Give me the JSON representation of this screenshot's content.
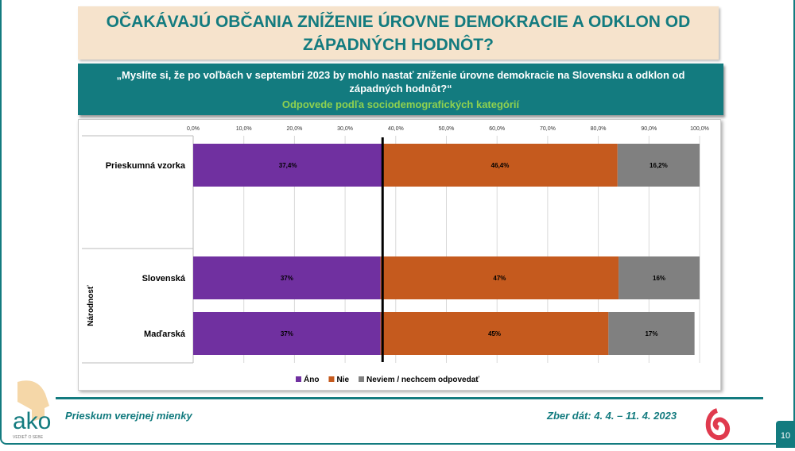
{
  "title": "OČAKÁVAJÚ OBČANIA ZNÍŽENIE ÚROVNE DEMOKRACIE A ODKLON OD ZÁPADNÝCH HODNÔT?",
  "question": "„Myslíte si, že po voľbách v septembri 2023 by mohlo nastať zníženie úrovne demokracie na Slovensku a odklon od západných hodnôt?“",
  "subtitle": "Odpovede podľa sociodemografických kategórií",
  "footer": {
    "left": "Prieskum verejnej mienky",
    "right": "Zber dát: 4. 4. – 11. 4. 2023",
    "page": "10",
    "logo_text": "ako",
    "logo_tagline": "VEDIEŤ O SEBE"
  },
  "chart_data": {
    "type": "bar",
    "orientation": "horizontal",
    "stacked": true,
    "xlim": [
      0,
      100
    ],
    "ticks": [
      "0,0%",
      "10,0%",
      "20,0%",
      "30,0%",
      "40,0%",
      "50,0%",
      "60,0%",
      "70,0%",
      "80,0%",
      "90,0%",
      "100,0%"
    ],
    "group_label": "Národnosť",
    "categories": [
      "Prieskumná vzorka",
      "Slovenská",
      "Maďarská"
    ],
    "series": [
      {
        "name": "Áno",
        "color": "#7030a0",
        "values": [
          37.4,
          37,
          37
        ],
        "labels": [
          "37,4%",
          "37%",
          "37%"
        ]
      },
      {
        "name": "Nie",
        "color": "#c55a1e",
        "values": [
          46.4,
          47,
          45
        ],
        "labels": [
          "46,4%",
          "47%",
          "45%"
        ]
      },
      {
        "name": "Neviem / nechcem odpovedať",
        "color": "#808080",
        "values": [
          16.2,
          16,
          17
        ],
        "labels": [
          "16,2%",
          "16%",
          "17%"
        ]
      }
    ],
    "reference_line": 37.4,
    "grid": true,
    "legend": "bottom"
  }
}
